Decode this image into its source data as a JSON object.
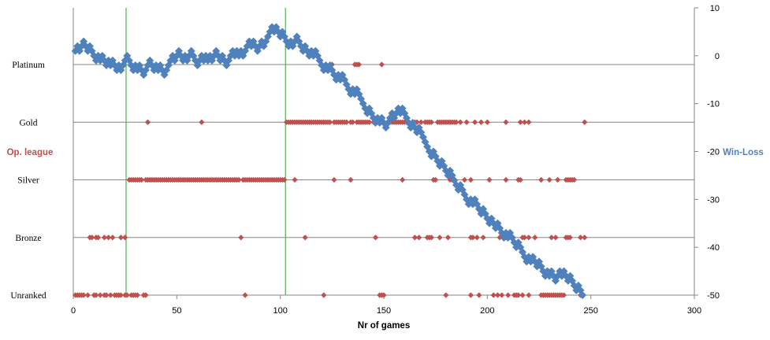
{
  "chart_data": {
    "type": "scatter",
    "xlabel": "Nr of games",
    "ylabel_left": "Op. league",
    "ylabel_right": "Win-Loss",
    "xlim": [
      0,
      300
    ],
    "x_ticks": [
      0,
      50,
      100,
      150,
      200,
      250,
      300
    ],
    "y_right_lim": [
      -50,
      10
    ],
    "y_right_ticks": [
      10,
      0,
      -10,
      -20,
      -30,
      -40,
      -50
    ],
    "league_categories": [
      "Unranked",
      "Bronze",
      "Silver",
      "Gold",
      "Platinum"
    ],
    "vertical_lines_x": [
      25.5,
      102.5
    ],
    "colors": {
      "win_loss": "#4f81bd",
      "op_league": "#c0504d",
      "vlines": "#4caf50",
      "ylabel_left": "#c0504d",
      "ylabel_right": "#4f81bd"
    },
    "win_loss_steps": "UDUUDDUDDDUDUDDUDUDDUDUUUDDDUDUDDUUUDDUDUDDUUUUDUUDDUDUUDDDUUDUDUDUUDDUDDUUUDUDUDUUUDUDDUUDUUUUDUDDUDDDUDUUDDDUDDUDUDDDDUDUDDDUDUDDDDUDUDDDDDUDDDUDUDDUUUDUUDUDDDDUDDUDDDDDDUDDDUDDDUDDDDUDDDDUDUDDDUDDDUDDUDDDUDUDDDUDDDDUDUDDUDDDUDUDDUUDUDDUDDDUDD",
    "series": [
      {
        "name": "Win-Loss",
        "axis": "right",
        "start": 1
      },
      {
        "name": "Op. league",
        "axis": "left",
        "points": {
          "Platinum": [
            125,
            136,
            137,
            138,
            149
          ],
          "Gold": [
            36,
            62,
            103,
            104,
            105,
            106,
            107,
            108,
            109,
            110,
            111,
            112,
            113,
            114,
            115,
            116,
            117,
            118,
            119,
            120,
            121,
            122,
            123,
            124,
            126,
            127,
            128,
            129,
            130,
            131,
            132,
            134,
            135,
            137,
            138,
            139,
            140,
            141,
            142,
            143,
            145,
            146,
            148,
            150,
            152,
            153,
            154,
            155,
            156,
            157,
            158,
            159,
            160,
            161,
            162,
            164,
            165,
            166,
            168,
            170,
            171,
            172,
            173,
            176,
            177,
            178,
            179,
            180,
            181,
            182,
            183,
            184,
            185,
            187,
            190,
            194,
            197,
            200,
            209,
            216,
            218,
            220,
            247
          ],
          "Silver": [
            27,
            28,
            29,
            30,
            31,
            32,
            33,
            35,
            36,
            37,
            38,
            39,
            40,
            41,
            42,
            43,
            44,
            45,
            46,
            47,
            48,
            49,
            50,
            51,
            52,
            53,
            54,
            55,
            56,
            57,
            58,
            59,
            60,
            61,
            62,
            63,
            64,
            65,
            66,
            67,
            68,
            69,
            70,
            71,
            72,
            73,
            74,
            75,
            76,
            77,
            78,
            79,
            80,
            82,
            83,
            84,
            85,
            86,
            87,
            88,
            89,
            90,
            91,
            92,
            93,
            94,
            95,
            96,
            97,
            98,
            99,
            100,
            101,
            102,
            107,
            126,
            134,
            159,
            174,
            175,
            182,
            183,
            189,
            192,
            201,
            209,
            215,
            216,
            226,
            230,
            234,
            238,
            239,
            240,
            241,
            242
          ],
          "Bronze": [
            8,
            9,
            11,
            12,
            15,
            17,
            19,
            23,
            25,
            81,
            112,
            146,
            165,
            167,
            171,
            172,
            173,
            177,
            181,
            192,
            193,
            195,
            198,
            206,
            209,
            217,
            218,
            220,
            223,
            231,
            233,
            238,
            239,
            240,
            245,
            247
          ],
          "Unranked": [
            1,
            2,
            3,
            4,
            5,
            7,
            10,
            11,
            13,
            15,
            16,
            18,
            20,
            21,
            22,
            23,
            25,
            26,
            28,
            29,
            30,
            31,
            34,
            35,
            83,
            121,
            148,
            149,
            150,
            180,
            192,
            196,
            203,
            205,
            207,
            210,
            213,
            214,
            215,
            217,
            220,
            226,
            227,
            228,
            229,
            230,
            231,
            232,
            233,
            234,
            235,
            236,
            237,
            245
          ]
        }
      }
    ]
  }
}
